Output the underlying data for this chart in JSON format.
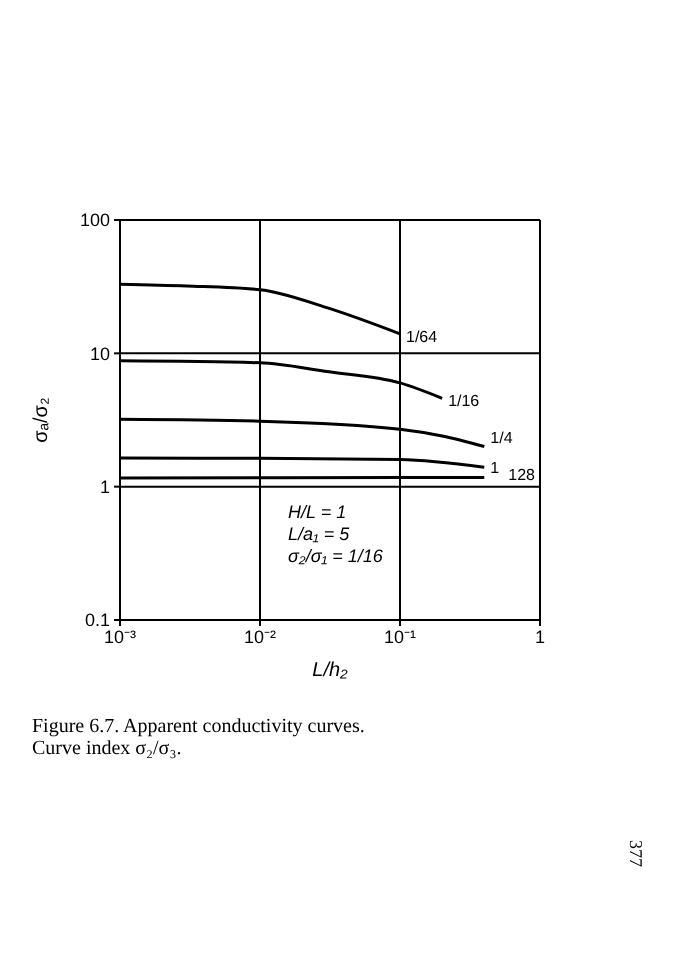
{
  "chart_data": {
    "type": "line",
    "xlabel": "L/h₂",
    "ylabel": "σₐ/σ₂",
    "log": "xy",
    "grid": true,
    "marker": "none",
    "line_style": "solid",
    "xlim": [
      0.001,
      1
    ],
    "xticks": [
      {
        "value": 0.001,
        "label": "10⁻³"
      },
      {
        "value": 0.01,
        "label": "10⁻²"
      },
      {
        "value": 0.1,
        "label": "10⁻¹"
      },
      1
    ],
    "ylim": [
      0.1,
      100
    ],
    "yticks": [
      0.1,
      1,
      10,
      100
    ],
    "series": [
      {
        "name": "1/64",
        "color": "#000000",
        "x": [
          0.001,
          0.003,
          0.01,
          0.03,
          0.1
        ],
        "values": [
          33,
          32,
          30,
          22,
          14
        ]
      },
      {
        "name": "1/16",
        "color": "#000000",
        "x": [
          0.001,
          0.01,
          0.03,
          0.1,
          0.2
        ],
        "values": [
          8.8,
          8.5,
          7.3,
          6,
          4.6
        ]
      },
      {
        "name": "1/4",
        "color": "#000000",
        "x": [
          0.001,
          0.01,
          0.1,
          0.2,
          0.4
        ],
        "values": [
          3.2,
          3.1,
          2.7,
          2.4,
          2.0
        ]
      },
      {
        "name": "1",
        "color": "#000000",
        "x": [
          0.001,
          0.01,
          0.1,
          0.4
        ],
        "values": [
          1.64,
          1.63,
          1.6,
          1.4
        ]
      },
      {
        "name": "128",
        "color": "#000000",
        "x": [
          0.001,
          0.1,
          0.4
        ],
        "values": [
          1.16,
          1.17,
          1.17
        ]
      }
    ],
    "annotations": [
      "H/L = 1",
      "L/a₁ = 5",
      "σ₂/σ₁ = 1/16",
      "Figure 6.7.  Apparent conductivity curves.  Curve index σ₂/σ₃.",
      "377"
    ]
  }
}
